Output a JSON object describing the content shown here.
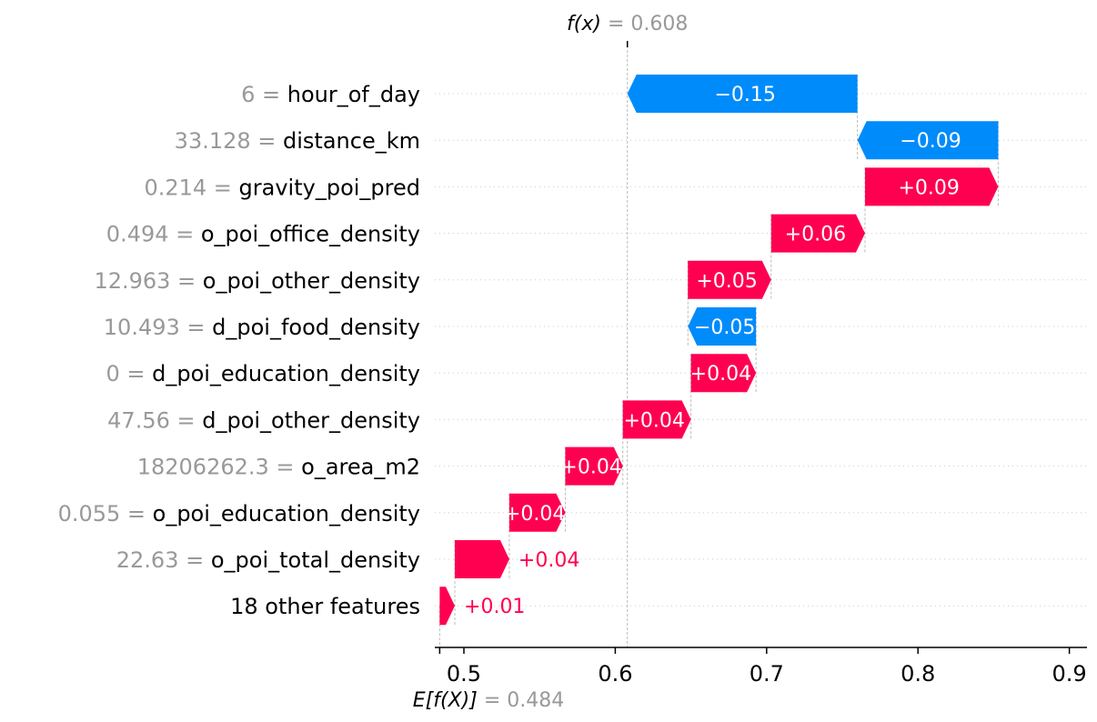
{
  "chart_data": {
    "type": "waterfall",
    "title": "",
    "colors": {
      "positive": "#ff0051",
      "negative": "#008bfb",
      "value_gray": "#999999"
    },
    "fx": {
      "label": "f(x)",
      "eq": " = 0.608",
      "value": 0.608
    },
    "base": {
      "label": "E[f(X)]",
      "eq": " = 0.484",
      "value": 0.484
    },
    "xlim": [
      0.48,
      0.915
    ],
    "xticks": [
      {
        "value": 0.5,
        "label": "0.5"
      },
      {
        "value": 0.6,
        "label": "0.6"
      },
      {
        "value": 0.7,
        "label": "0.7"
      },
      {
        "value": 0.8,
        "label": "0.8"
      },
      {
        "value": 0.9,
        "label": "0.9"
      }
    ],
    "features": [
      {
        "value_text": "6 = ",
        "name": "hour_of_day",
        "shap": -0.152,
        "label": "−0.15",
        "label_position": "inside"
      },
      {
        "value_text": "33.128 = ",
        "name": "distance_km",
        "shap": -0.093,
        "label": "−0.09",
        "label_position": "inside"
      },
      {
        "value_text": "0.214 = ",
        "name": "gravity_poi_pred",
        "shap": 0.088,
        "label": "+0.09",
        "label_position": "inside"
      },
      {
        "value_text": "0.494 = ",
        "name": "o_poi_office_density",
        "shap": 0.062,
        "label": "+0.06",
        "label_position": "inside"
      },
      {
        "value_text": "12.963 = ",
        "name": "o_poi_other_density",
        "shap": 0.055,
        "label": "+0.05",
        "label_position": "inside"
      },
      {
        "value_text": "10.493 = ",
        "name": "d_poi_food_density",
        "shap": -0.045,
        "label": "−0.05",
        "label_position": "inside"
      },
      {
        "value_text": "0 = ",
        "name": "d_poi_education_density",
        "shap": 0.043,
        "label": "+0.04",
        "label_position": "inside"
      },
      {
        "value_text": "47.56 = ",
        "name": "d_poi_other_density",
        "shap": 0.045,
        "label": "+0.04",
        "label_position": "inside"
      },
      {
        "value_text": "18206262.3 = ",
        "name": "o_area_m2",
        "shap": 0.038,
        "label": "+0.04",
        "label_position": "inside"
      },
      {
        "value_text": "0.055 = ",
        "name": "o_poi_education_density",
        "shap": 0.037,
        "label": "+0.04",
        "label_position": "inside"
      },
      {
        "value_text": "22.63 = ",
        "name": "o_poi_total_density",
        "shap": 0.036,
        "label": "+0.04",
        "label_position": "outside"
      },
      {
        "value_text": "",
        "name": "18 other features",
        "shap": 0.01,
        "label": "+0.01",
        "label_position": "outside"
      }
    ]
  }
}
